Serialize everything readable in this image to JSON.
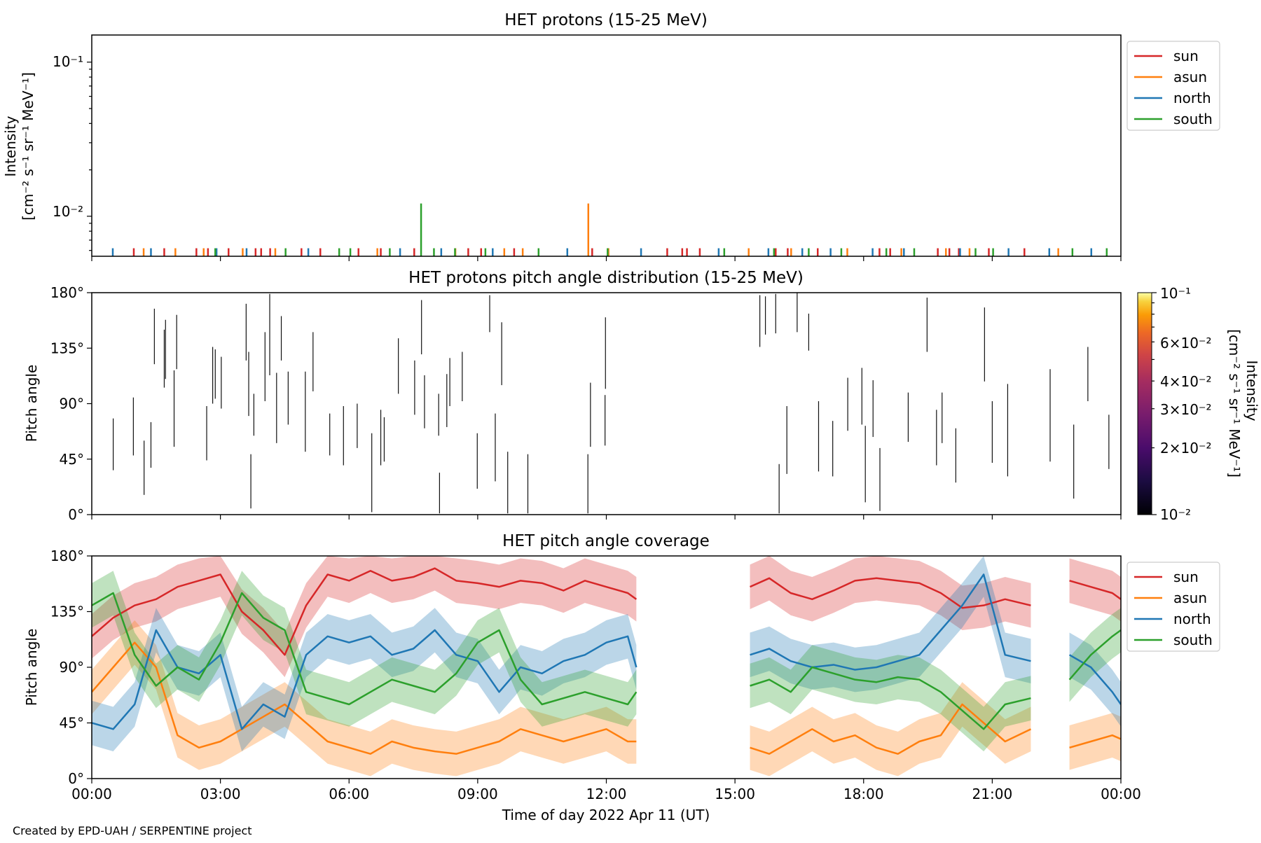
{
  "figure": {
    "credit": "Created by EPD-UAH / SERPENTINE project",
    "xlabel": "Time of day 2022 Apr 11 (UT)",
    "x_ticks": [
      "00:00",
      "03:00",
      "06:00",
      "09:00",
      "12:00",
      "15:00",
      "18:00",
      "21:00",
      "00:00"
    ],
    "colors": {
      "sun": "#d62728",
      "asun": "#ff7f0e",
      "north": "#1f77b4",
      "south": "#2ca02c"
    },
    "legend_entries": [
      "sun",
      "asun",
      "north",
      "south"
    ]
  },
  "panels": {
    "intensity": {
      "title": "HET protons (15-25 MeV)",
      "ylabel_line1": "Intensity",
      "ylabel_line2": "[cm⁻² s⁻¹ sr⁻¹ MeV⁻¹]",
      "y_ticks": [
        "10⁻¹",
        "10⁻²"
      ]
    },
    "pad": {
      "title": "HET protons pitch angle distribution (15-25 MeV)",
      "ylabel": "Pitch angle",
      "y_ticks": [
        "180°",
        "135°",
        "90°",
        "45°",
        "0°"
      ],
      "colorbar_label_line1": "Intensity",
      "colorbar_label_line2": "[cm⁻² s⁻¹ sr⁻¹ MeV⁻¹]",
      "colorbar_ticks": [
        "10⁻¹",
        "6×10⁻²",
        "4×10⁻²",
        "3×10⁻²",
        "2×10⁻²",
        "10⁻²"
      ]
    },
    "coverage": {
      "title": "HET pitch angle coverage",
      "ylabel": "Pitch angle",
      "y_ticks": [
        "180°",
        "135°",
        "90°",
        "45°",
        "0°"
      ]
    }
  },
  "chart_data": [
    {
      "type": "bar",
      "title": "HET protons (15-25 MeV)",
      "xlabel": "",
      "ylabel": "Intensity [cm⁻² s⁻¹ sr⁻¹ MeV⁻¹]",
      "yscale": "log",
      "ylim": [
        0.0055,
        0.15
      ],
      "xlim_hours": [
        0,
        24
      ],
      "legend": "right-outside-top",
      "series": [
        {
          "name": "sun",
          "x_hours": [
            0.98,
            1.69,
            2.44,
            2.71,
            3.19,
            3.82,
            3.95,
            4.16,
            4.89,
            5.33,
            6.22,
            6.74,
            7.52,
            8.78,
            9.08,
            9.85,
            11.67,
            13.42,
            13.77,
            13.88,
            14.18,
            15.95,
            16.23,
            16.93,
            18.37,
            18.62,
            19.73,
            20.0,
            20.22,
            20.92,
            21.75
          ],
          "values": [
            0.0062,
            0.0062,
            0.0062,
            0.0062,
            0.0062,
            0.0062,
            0.0062,
            0.0062,
            0.0062,
            0.0062,
            0.0062,
            0.0062,
            0.0062,
            0.0062,
            0.0062,
            0.0062,
            0.0062,
            0.0062,
            0.0062,
            0.0062,
            0.0062,
            0.0062,
            0.0062,
            0.0062,
            0.0062,
            0.0062,
            0.0062,
            0.0062,
            0.0062,
            0.0062,
            0.0062
          ]
        },
        {
          "name": "asun",
          "x_hours": [
            1.21,
            1.95,
            2.61,
            3.52,
            4.28,
            6.66,
            8.48,
            9.62,
            10.05,
            11.58,
            12.05,
            15.32,
            16.31,
            17.62,
            18.88,
            19.92,
            20.47,
            22.54
          ],
          "values": [
            0.0062,
            0.0062,
            0.0062,
            0.0062,
            0.0062,
            0.0062,
            0.0062,
            0.0062,
            0.0062,
            0.0121,
            0.0062,
            0.0062,
            0.0062,
            0.0062,
            0.0062,
            0.0062,
            0.0062,
            0.0062
          ]
        },
        {
          "name": "north",
          "x_hours": [
            0.49,
            1.38,
            2.91,
            3.61,
            5.05,
            7.19,
            8.15,
            9.35,
            11.09,
            12.81,
            14.62,
            15.78,
            16.57,
            17.23,
            18.21,
            18.94,
            20.25,
            21.38,
            22.33,
            23.31
          ],
          "values": [
            0.0062,
            0.0062,
            0.0062,
            0.0062,
            0.0062,
            0.0062,
            0.0062,
            0.0062,
            0.0062,
            0.0062,
            0.0062,
            0.0062,
            0.0062,
            0.0062,
            0.0062,
            0.0062,
            0.0062,
            0.0062,
            0.0062,
            0.0062
          ]
        },
        {
          "name": "south",
          "x_hours": [
            2.88,
            4.52,
            5.77,
            6.03,
            6.95,
            7.68,
            7.98,
            8.47,
            9.18,
            10.42,
            12.03,
            14.75,
            15.91,
            16.72,
            17.48,
            18.53,
            19.18,
            20.61,
            21.02,
            22.87,
            23.67
          ],
          "values": [
            0.0062,
            0.0062,
            0.0062,
            0.0062,
            0.0062,
            0.0121,
            0.0062,
            0.0062,
            0.0062,
            0.0062,
            0.0062,
            0.0062,
            0.0062,
            0.0062,
            0.0062,
            0.0062,
            0.0062,
            0.0062,
            0.0062,
            0.0062,
            0.0062
          ]
        }
      ]
    },
    {
      "type": "heatmap",
      "title": "HET protons pitch angle distribution (15-25 MeV)",
      "xlabel": "",
      "ylabel": "Pitch angle",
      "ylim": [
        0,
        180
      ],
      "xlim_hours": [
        0,
        24
      ],
      "colorbar": {
        "scale": "log",
        "range": [
          0.01,
          0.1
        ],
        "colormap": "inferno"
      },
      "cells": [
        {
          "x": 0.5,
          "y0": 36,
          "y1": 78
        },
        {
          "x": 0.97,
          "y0": 48,
          "y1": 95
        },
        {
          "x": 1.22,
          "y0": 16,
          "y1": 60
        },
        {
          "x": 1.38,
          "y0": 38,
          "y1": 75
        },
        {
          "x": 1.46,
          "y0": 122,
          "y1": 167
        },
        {
          "x": 1.69,
          "y0": 103,
          "y1": 150
        },
        {
          "x": 1.72,
          "y0": 110,
          "y1": 158
        },
        {
          "x": 1.92,
          "y0": 55,
          "y1": 117
        },
        {
          "x": 1.98,
          "y0": 118,
          "y1": 162
        },
        {
          "x": 2.68,
          "y0": 44,
          "y1": 88
        },
        {
          "x": 2.82,
          "y0": 90,
          "y1": 136
        },
        {
          "x": 2.88,
          "y0": 94,
          "y1": 134
        },
        {
          "x": 3.02,
          "y0": 86,
          "y1": 128
        },
        {
          "x": 3.6,
          "y0": 125,
          "y1": 171
        },
        {
          "x": 3.66,
          "y0": 80,
          "y1": 132
        },
        {
          "x": 3.71,
          "y0": 5,
          "y1": 49
        },
        {
          "x": 3.78,
          "y0": 64,
          "y1": 98
        },
        {
          "x": 4.04,
          "y0": 92,
          "y1": 148
        },
        {
          "x": 4.15,
          "y0": 113,
          "y1": 179
        },
        {
          "x": 4.31,
          "y0": 58,
          "y1": 115
        },
        {
          "x": 4.42,
          "y0": 125,
          "y1": 161
        },
        {
          "x": 4.58,
          "y0": 73,
          "y1": 116
        },
        {
          "x": 4.98,
          "y0": 51,
          "y1": 116
        },
        {
          "x": 5.16,
          "y0": 100,
          "y1": 148
        },
        {
          "x": 5.55,
          "y0": 48,
          "y1": 82
        },
        {
          "x": 5.87,
          "y0": 40,
          "y1": 88
        },
        {
          "x": 6.19,
          "y0": 54,
          "y1": 90
        },
        {
          "x": 6.53,
          "y0": 2,
          "y1": 66
        },
        {
          "x": 6.74,
          "y0": 40,
          "y1": 85
        },
        {
          "x": 6.82,
          "y0": 43,
          "y1": 79
        },
        {
          "x": 7.15,
          "y0": 98,
          "y1": 143
        },
        {
          "x": 7.53,
          "y0": 81,
          "y1": 125
        },
        {
          "x": 7.69,
          "y0": 130,
          "y1": 174
        },
        {
          "x": 7.76,
          "y0": 70,
          "y1": 113
        },
        {
          "x": 8.09,
          "y0": 64,
          "y1": 98
        },
        {
          "x": 8.11,
          "y0": 1,
          "y1": 34
        },
        {
          "x": 8.28,
          "y0": 71,
          "y1": 114
        },
        {
          "x": 8.35,
          "y0": 88,
          "y1": 127
        },
        {
          "x": 8.64,
          "y0": 92,
          "y1": 132
        },
        {
          "x": 8.99,
          "y0": 21,
          "y1": 66
        },
        {
          "x": 9.28,
          "y0": 148,
          "y1": 178
        },
        {
          "x": 9.41,
          "y0": 27,
          "y1": 82
        },
        {
          "x": 9.56,
          "y0": 105,
          "y1": 156
        },
        {
          "x": 9.7,
          "y0": 1,
          "y1": 51
        },
        {
          "x": 10.17,
          "y0": 1,
          "y1": 49
        },
        {
          "x": 11.57,
          "y0": 1,
          "y1": 49
        },
        {
          "x": 11.63,
          "y0": 55,
          "y1": 107
        },
        {
          "x": 11.97,
          "y0": 56,
          "y1": 97
        },
        {
          "x": 11.98,
          "y0": 102,
          "y1": 160
        },
        {
          "x": 15.58,
          "y0": 136,
          "y1": 178
        },
        {
          "x": 15.71,
          "y0": 146,
          "y1": 177
        },
        {
          "x": 15.95,
          "y0": 147,
          "y1": 179
        },
        {
          "x": 16.03,
          "y0": 1,
          "y1": 41
        },
        {
          "x": 16.21,
          "y0": 33,
          "y1": 88
        },
        {
          "x": 16.45,
          "y0": 148,
          "y1": 180
        },
        {
          "x": 16.72,
          "y0": 133,
          "y1": 163
        },
        {
          "x": 16.95,
          "y0": 35,
          "y1": 92
        },
        {
          "x": 17.28,
          "y0": 31,
          "y1": 76
        },
        {
          "x": 17.63,
          "y0": 68,
          "y1": 111
        },
        {
          "x": 17.96,
          "y0": 73,
          "y1": 119
        },
        {
          "x": 18.04,
          "y0": 10,
          "y1": 72
        },
        {
          "x": 18.22,
          "y0": 63,
          "y1": 109
        },
        {
          "x": 18.38,
          "y0": 3,
          "y1": 54
        },
        {
          "x": 19.04,
          "y0": 59,
          "y1": 99
        },
        {
          "x": 19.48,
          "y0": 132,
          "y1": 176
        },
        {
          "x": 19.7,
          "y0": 40,
          "y1": 85
        },
        {
          "x": 19.83,
          "y0": 58,
          "y1": 99
        },
        {
          "x": 20.15,
          "y0": 26,
          "y1": 70
        },
        {
          "x": 20.82,
          "y0": 108,
          "y1": 168
        },
        {
          "x": 21.0,
          "y0": 42,
          "y1": 92
        },
        {
          "x": 21.36,
          "y0": 31,
          "y1": 106
        },
        {
          "x": 22.35,
          "y0": 43,
          "y1": 118
        },
        {
          "x": 22.9,
          "y0": 13,
          "y1": 73
        },
        {
          "x": 23.23,
          "y0": 92,
          "y1": 136
        },
        {
          "x": 23.72,
          "y0": 37,
          "y1": 81
        }
      ]
    },
    {
      "type": "line",
      "title": "HET pitch angle coverage",
      "xlabel": "Time of day 2022 Apr 11 (UT)",
      "ylabel": "Pitch angle",
      "ylim": [
        0,
        180
      ],
      "xlim_hours": [
        0,
        24
      ],
      "legend": "right-outside-top",
      "band_halfwidth_deg": 18,
      "segments_hours": [
        [
          0,
          12.7
        ],
        [
          15.35,
          21.9
        ],
        [
          22.8,
          24
        ]
      ],
      "series": [
        {
          "name": "sun",
          "x_hours": [
            0,
            0.5,
            1,
            1.5,
            2,
            2.5,
            3,
            3.5,
            4,
            4.5,
            5,
            5.5,
            6,
            6.5,
            7,
            7.5,
            8,
            8.5,
            9,
            9.5,
            10,
            10.5,
            11,
            11.5,
            12,
            12.5,
            12.7,
            15.35,
            15.8,
            16.3,
            16.8,
            17.3,
            17.8,
            18.3,
            18.8,
            19.3,
            19.8,
            20.3,
            20.8,
            21.3,
            21.9,
            22.8,
            23.3,
            23.8,
            24
          ],
          "values": [
            115,
            130,
            140,
            145,
            155,
            160,
            165,
            135,
            120,
            100,
            140,
            165,
            160,
            168,
            160,
            163,
            170,
            160,
            158,
            155,
            160,
            158,
            152,
            160,
            155,
            150,
            145,
            155,
            162,
            150,
            145,
            152,
            160,
            162,
            160,
            158,
            150,
            138,
            140,
            145,
            140,
            160,
            155,
            150,
            145
          ]
        },
        {
          "name": "asun",
          "x_hours": [
            0,
            0.5,
            1,
            1.5,
            2,
            2.5,
            3,
            3.5,
            4,
            4.5,
            5,
            5.5,
            6,
            6.5,
            7,
            7.5,
            8,
            8.5,
            9,
            9.5,
            10,
            10.5,
            11,
            11.5,
            12,
            12.5,
            12.7,
            15.35,
            15.8,
            16.3,
            16.8,
            17.3,
            17.8,
            18.3,
            18.8,
            19.3,
            19.8,
            20.3,
            20.8,
            21.3,
            21.9,
            22.8,
            23.3,
            23.8,
            24
          ],
          "values": [
            70,
            90,
            110,
            90,
            35,
            25,
            30,
            40,
            50,
            60,
            45,
            30,
            25,
            20,
            30,
            25,
            22,
            20,
            25,
            30,
            40,
            35,
            30,
            35,
            40,
            30,
            30,
            25,
            20,
            30,
            40,
            30,
            35,
            25,
            20,
            30,
            35,
            60,
            45,
            30,
            40,
            25,
            30,
            35,
            32
          ]
        },
        {
          "name": "north",
          "x_hours": [
            0,
            0.5,
            1,
            1.5,
            2,
            2.5,
            3,
            3.5,
            4,
            4.5,
            5,
            5.5,
            6,
            6.5,
            7,
            7.5,
            8,
            8.5,
            9,
            9.5,
            10,
            10.5,
            11,
            11.5,
            12,
            12.5,
            12.7,
            15.35,
            15.8,
            16.3,
            16.8,
            17.3,
            17.8,
            18.3,
            18.8,
            19.3,
            19.8,
            20.3,
            20.8,
            21.3,
            21.9,
            22.8,
            23.3,
            23.8,
            24
          ],
          "values": [
            45,
            40,
            60,
            120,
            90,
            85,
            100,
            40,
            60,
            50,
            100,
            115,
            110,
            115,
            100,
            105,
            120,
            100,
            95,
            70,
            90,
            85,
            95,
            100,
            110,
            115,
            90,
            100,
            105,
            95,
            90,
            92,
            88,
            90,
            95,
            100,
            120,
            140,
            165,
            100,
            95,
            100,
            90,
            70,
            60
          ]
        },
        {
          "name": "south",
          "x_hours": [
            0,
            0.5,
            1,
            1.5,
            2,
            2.5,
            3,
            3.5,
            4,
            4.5,
            5,
            5.5,
            6,
            6.5,
            7,
            7.5,
            8,
            8.5,
            9,
            9.5,
            10,
            10.5,
            11,
            11.5,
            12,
            12.5,
            12.7,
            15.35,
            15.8,
            16.3,
            16.8,
            17.3,
            17.8,
            18.3,
            18.8,
            19.3,
            19.8,
            20.3,
            20.8,
            21.3,
            21.9,
            22.8,
            23.3,
            23.8,
            24
          ],
          "values": [
            140,
            150,
            100,
            75,
            90,
            80,
            110,
            150,
            130,
            120,
            70,
            65,
            60,
            70,
            80,
            75,
            70,
            85,
            110,
            120,
            80,
            60,
            65,
            70,
            65,
            60,
            70,
            75,
            80,
            70,
            90,
            85,
            80,
            78,
            82,
            80,
            70,
            55,
            40,
            60,
            65,
            80,
            100,
            115,
            120
          ]
        }
      ]
    }
  ]
}
